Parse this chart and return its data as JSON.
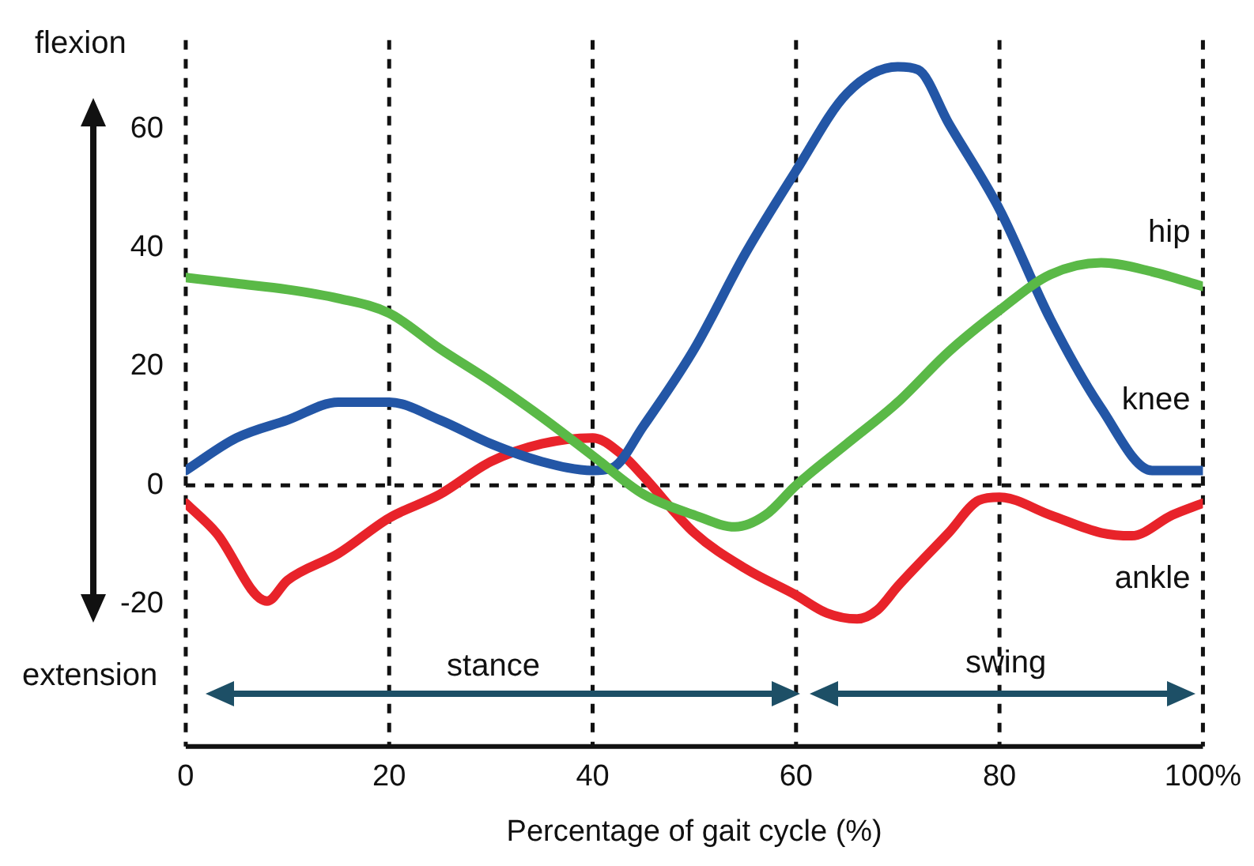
{
  "chart_data": {
    "type": "line",
    "xlabel": "Percentage of gait cycle (%)",
    "xlim": [
      0,
      100
    ],
    "xticks": [
      0,
      20,
      40,
      60,
      80,
      {
        "value": 100,
        "label": "100%"
      }
    ],
    "ylim": [
      -44,
      75
    ],
    "yticks": [
      -20,
      0,
      20,
      40,
      60
    ],
    "grid": "x",
    "legend": false,
    "marker": "none",
    "line_style": "solid",
    "ref_lines": [
      {
        "axis": "y",
        "value": 0,
        "color": "#111111",
        "line_style": "dashed"
      }
    ],
    "annotations": [
      "flexion",
      "extension",
      "stance",
      "swing"
    ],
    "series": [
      {
        "name": "hip",
        "color": "#5ab947",
        "x": [
          0,
          5,
          10,
          15,
          20,
          25,
          30,
          35,
          40,
          45,
          50,
          54,
          57,
          60,
          65,
          70,
          75,
          80,
          85,
          90,
          95,
          100
        ],
        "values": [
          35,
          34,
          33,
          31.5,
          29,
          23,
          17.5,
          11.5,
          5,
          -1.5,
          -5,
          -7,
          -5,
          0,
          7,
          14,
          22.5,
          29.5,
          35.5,
          37.5,
          36,
          33.5
        ]
      },
      {
        "name": "knee",
        "color": "#2356a6",
        "x": [
          0,
          5,
          10,
          15,
          20,
          25,
          30,
          35,
          40,
          42,
          45,
          50,
          55,
          60,
          65,
          70,
          72,
          75,
          80,
          85,
          90,
          95,
          100
        ],
        "values": [
          2.5,
          8,
          11,
          14,
          14,
          11,
          7,
          4,
          2.5,
          3,
          10,
          23,
          39,
          53,
          66,
          70.5,
          70,
          61,
          46.5,
          28,
          13,
          2.5,
          2.5
        ]
      },
      {
        "name": "ankle",
        "color": "#e8232a",
        "x": [
          0,
          3,
          8,
          10,
          15,
          20,
          25,
          30,
          35,
          40,
          43,
          45,
          50,
          55,
          60,
          63,
          66,
          68,
          70,
          75,
          78,
          80,
          85,
          90,
          93,
          97,
          100
        ],
        "values": [
          -3,
          -8,
          -19.5,
          -16,
          -11.5,
          -5.5,
          -1.5,
          4,
          7,
          8,
          5,
          1.5,
          -8,
          -14,
          -18.5,
          -21.5,
          -22.5,
          -21,
          -17,
          -8,
          -2.5,
          -2,
          -5,
          -8,
          -8.5,
          -5,
          -3
        ]
      }
    ]
  }
}
